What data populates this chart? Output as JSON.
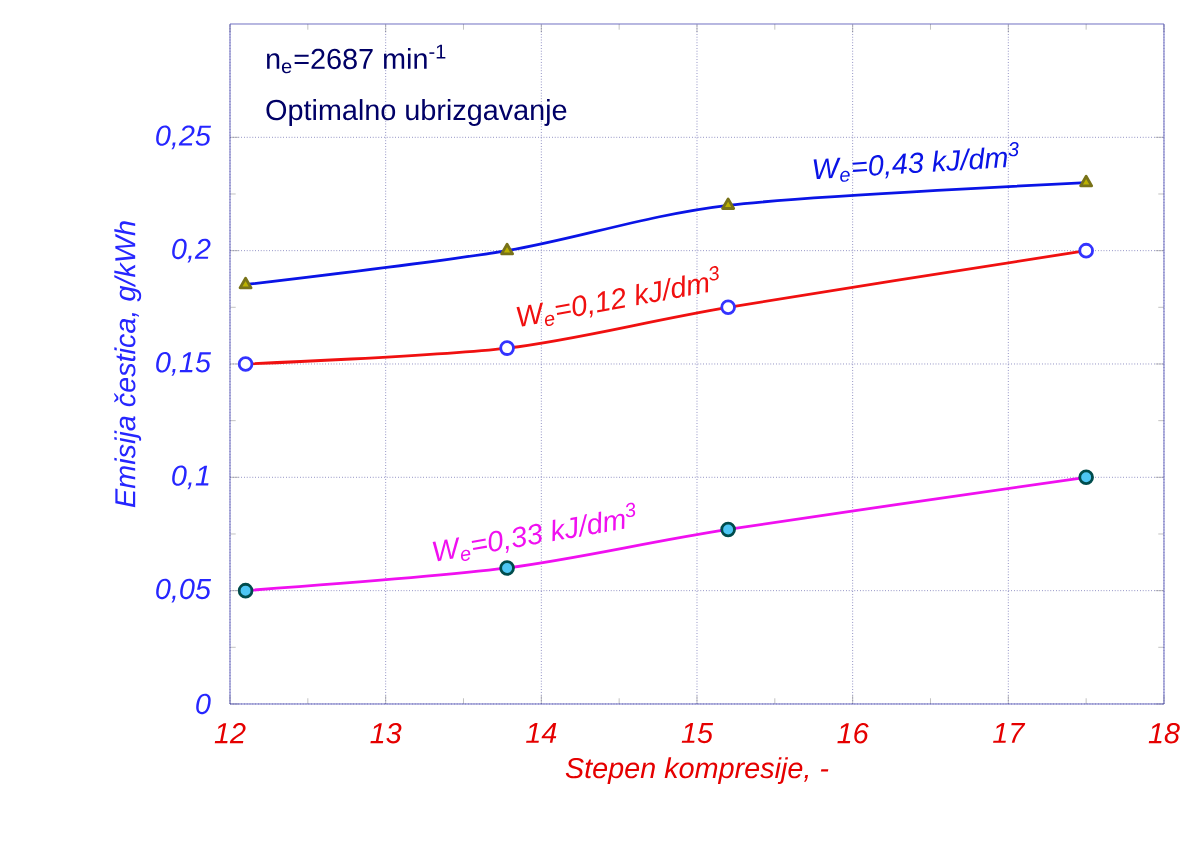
{
  "chart_data": {
    "type": "line",
    "xlabel": "Stepen kompresije, -",
    "ylabel": "Emisija čestica, g/kWh",
    "annotations": [
      "n$_{e}$=2687 min$^{-1}$",
      "Optimalno ubrizgavanje"
    ],
    "series": [
      {
        "name": "W$_{e}$=0,43 kJ/dm$^{3}$",
        "color": "#0a14e6",
        "marker": "triangle",
        "x": [
          12.1,
          13.78,
          15.2,
          17.5
        ],
        "values": [
          0.185,
          0.2,
          0.22,
          0.23
        ]
      },
      {
        "name": "W$_{e}$=0,12 kJ/dm$^{3}$",
        "color": "#f01010",
        "marker": "circle",
        "x": [
          12.1,
          13.78,
          15.2,
          17.5
        ],
        "values": [
          0.15,
          0.157,
          0.175,
          0.2
        ]
      },
      {
        "name": "W$_{e}$=0,33 kJ/dm$^{3}$",
        "color": "#f010f0",
        "marker": "circle",
        "x": [
          12.1,
          13.78,
          15.2,
          17.5
        ],
        "values": [
          0.05,
          0.06,
          0.077,
          0.1
        ]
      }
    ],
    "xlim": [
      12,
      18
    ],
    "ylim": [
      0,
      0.3
    ],
    "xticks": [
      12,
      13,
      14,
      15,
      16,
      17,
      18
    ],
    "yticks": [
      0,
      {
        "value": 0.05,
        "label": "0,05"
      },
      {
        "value": 0.1,
        "label": "0,1"
      },
      {
        "value": 0.15,
        "label": "0,15"
      },
      {
        "value": 0.2,
        "label": "0,2"
      },
      {
        "value": 0.25,
        "label": "0,25"
      }
    ],
    "grid": true,
    "line_style": "solid"
  }
}
